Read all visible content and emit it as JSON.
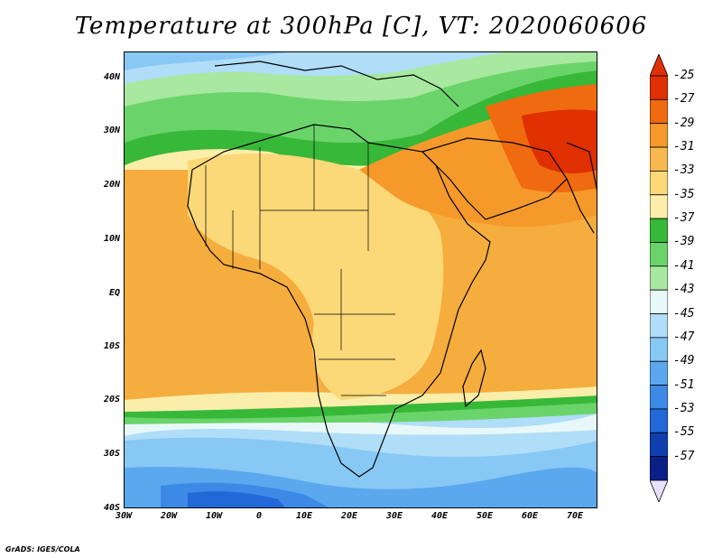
{
  "title": "Temperature at 300hPa [C], VT: 2020060606",
  "map": {
    "lat_labels": [
      "40N",
      "30N",
      "20N",
      "10N",
      "EQ",
      "10S",
      "20S",
      "30S",
      "40S"
    ],
    "lon_labels": [
      "30W",
      "20W",
      "10W",
      "0",
      "10E",
      "20E",
      "30E",
      "40E",
      "50E",
      "60E",
      "70E"
    ],
    "extent": {
      "lon_min": -30,
      "lon_max": 75,
      "lat_min": -40,
      "lat_max": 45
    }
  },
  "colorbar": {
    "labels": [
      "-25",
      "-27",
      "-29",
      "-31",
      "-33",
      "-35",
      "-37",
      "-39",
      "-41",
      "-43",
      "-45",
      "-47",
      "-49",
      "-51",
      "-53",
      "-55",
      "-57"
    ],
    "colors": [
      "#e03000",
      "#f06a10",
      "#f59a2a",
      "#f8b850",
      "#fbd878",
      "#fbeeaa",
      "#38b838",
      "#6ad46a",
      "#a8e8a0",
      "#e8f8f8",
      "#b0ddf8",
      "#88c8f5",
      "#5ca8ee",
      "#3c8ae6",
      "#2268d8",
      "#1040b0",
      "#0a2088"
    ],
    "top_color": "#e03000",
    "bottom_color": "#e8e0ff"
  },
  "credit": "GrADS: IGES/COLA"
}
